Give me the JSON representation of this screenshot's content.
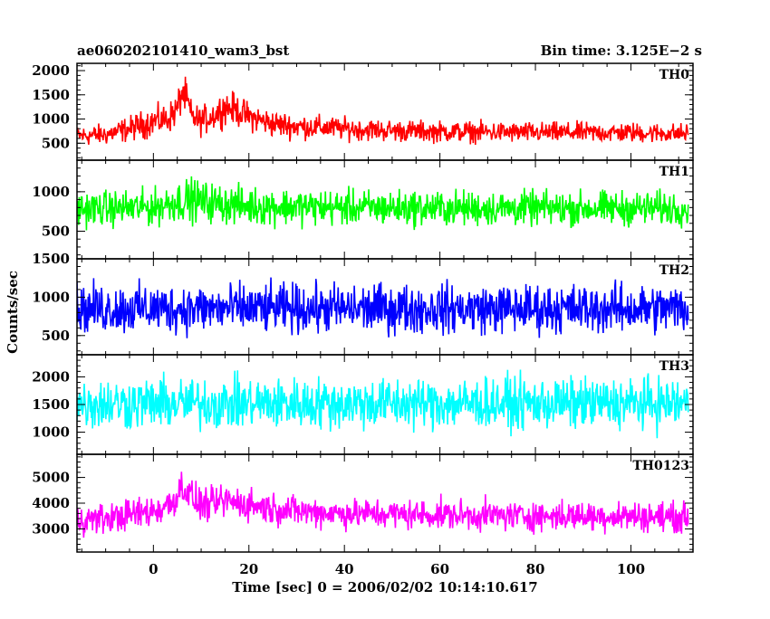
{
  "chart_data": {
    "type": "line",
    "title": "ae060202101410_wam3_bst",
    "subtitle": "Bin time: 3.125E−2 s",
    "xlabel": "Time [sec] 0 = 2006/02/02 10:14:10.617",
    "ylabel": "Counts/sec",
    "xlim": [
      -16,
      113
    ],
    "x_ticks": [
      0,
      20,
      40,
      60,
      80,
      100
    ],
    "x_tick_labels": [
      "0",
      "20",
      "40",
      "60",
      "80",
      "100"
    ],
    "data_x_range": [
      -16,
      112
    ],
    "grid": false,
    "panels": [
      {
        "name": "TH0",
        "color": "#ff0000",
        "ylim": [
          150,
          2150
        ],
        "y_ticks": [
          500,
          1000,
          1500,
          2000
        ],
        "y_tick_labels": [
          "500",
          "1000",
          "1500",
          "2000"
        ],
        "envelope": {
          "x": [
            -16,
            -10,
            -5,
            0,
            3,
            5,
            6,
            7,
            8,
            10,
            13,
            15,
            17,
            20,
            25,
            30,
            40,
            50,
            60,
            80,
            100,
            112
          ],
          "mean": [
            650,
            680,
            800,
            950,
            1000,
            1200,
            1550,
            1400,
            1050,
            950,
            1100,
            1250,
            1200,
            1050,
            900,
            850,
            800,
            760,
            740,
            720,
            720,
            700
          ],
          "amplitude": [
            300,
            320,
            380,
            450,
            450,
            520,
            560,
            520,
            450,
            430,
            470,
            500,
            480,
            430,
            400,
            380,
            340,
            330,
            320,
            310,
            300,
            300
          ]
        }
      },
      {
        "name": "TH1",
        "color": "#00ff00",
        "ylim": [
          150,
          1400
        ],
        "y_ticks": [
          500,
          1000
        ],
        "y_tick_labels": [
          "500",
          "1000"
        ],
        "envelope": {
          "x": [
            -16,
            0,
            5,
            8,
            12,
            20,
            40,
            60,
            80,
            100,
            112
          ],
          "mean": [
            780,
            800,
            880,
            900,
            860,
            820,
            800,
            790,
            790,
            790,
            790
          ],
          "amplitude": [
            320,
            340,
            380,
            400,
            370,
            350,
            330,
            330,
            320,
            320,
            320
          ]
        }
      },
      {
        "name": "TH2",
        "color": "#0000ff",
        "ylim": [
          250,
          1500
        ],
        "y_ticks": [
          500,
          1000,
          1500
        ],
        "y_tick_labels": [
          "500",
          "1000",
          "1500"
        ],
        "envelope": {
          "x": [
            -16,
            0,
            20,
            40,
            60,
            80,
            100,
            112
          ],
          "mean": [
            850,
            850,
            850,
            850,
            850,
            850,
            850,
            850
          ],
          "amplitude": [
            470,
            470,
            470,
            470,
            470,
            470,
            470,
            470
          ]
        }
      },
      {
        "name": "TH3",
        "color": "#00ffff",
        "ylim": [
          600,
          2400
        ],
        "y_ticks": [
          1000,
          1500,
          2000
        ],
        "y_tick_labels": [
          "1000",
          "1500",
          "2000"
        ],
        "envelope": {
          "x": [
            -16,
            0,
            20,
            40,
            60,
            80,
            100,
            112
          ],
          "mean": [
            1520,
            1520,
            1520,
            1520,
            1520,
            1520,
            1520,
            1520
          ],
          "amplitude": [
            680,
            680,
            680,
            680,
            680,
            680,
            680,
            680
          ]
        }
      },
      {
        "name": "TH0123",
        "color": "#ff00ff",
        "ylim": [
          2100,
          5900
        ],
        "y_ticks": [
          3000,
          4000,
          5000
        ],
        "y_tick_labels": [
          "3000",
          "4000",
          "5000"
        ],
        "envelope": {
          "x": [
            -16,
            -10,
            0,
            3,
            5,
            6,
            7,
            9,
            12,
            15,
            20,
            25,
            30,
            40,
            60,
            80,
            100,
            112
          ],
          "mean": [
            3350,
            3400,
            3700,
            3900,
            4300,
            4700,
            4500,
            4000,
            3900,
            4100,
            3950,
            3800,
            3700,
            3600,
            3550,
            3500,
            3500,
            3450
          ],
          "amplitude": [
            850,
            870,
            950,
            1000,
            1050,
            1100,
            1050,
            980,
            950,
            980,
            950,
            900,
            880,
            860,
            850,
            850,
            850,
            850
          ]
        }
      }
    ]
  }
}
